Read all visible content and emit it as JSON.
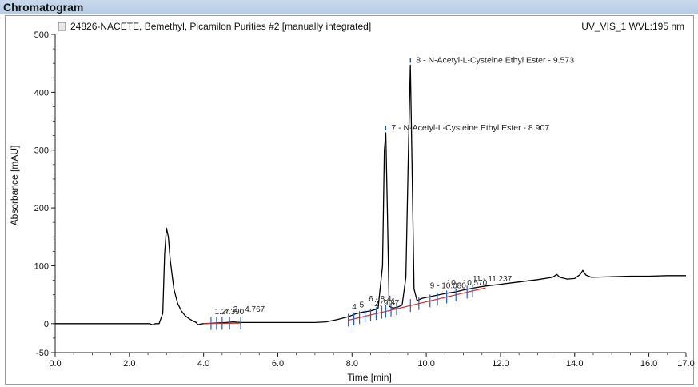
{
  "window": {
    "panel_title": "Chromatogram"
  },
  "chart_data": {
    "type": "line",
    "title": "24826-NACETE, Bemethyl, Picamilon Purities #2 [manually integrated]",
    "channel": "UV_VIS_1 WVL:195 nm",
    "xlabel": "Time [min]",
    "ylabel": "Absorbance [mAU]",
    "xlim": [
      0.0,
      17.0
    ],
    "ylim": [
      -50,
      500
    ],
    "x_ticks": [
      "0.0",
      "2.0",
      "4.0",
      "6.0",
      "8.0",
      "10.0",
      "12.0",
      "14.0",
      "16.0",
      "17.0"
    ],
    "y_ticks": [
      "-50",
      "0",
      "100",
      "200",
      "300",
      "400",
      "500"
    ],
    "colors": {
      "trace": "#000000",
      "baseline": "#e0302a",
      "markers": "#1f5fc8"
    },
    "series": [
      {
        "x": [
          0.0,
          2.55,
          2.62,
          2.7,
          2.8,
          2.9,
          2.95,
          3.0,
          3.05,
          3.1,
          3.2,
          3.3,
          3.4,
          3.5,
          3.6,
          3.7,
          3.8,
          3.85,
          3.9,
          4.0,
          4.3,
          4.6,
          4.8,
          5.0,
          5.5,
          6.0,
          6.5,
          7.0,
          7.3,
          7.6,
          7.9,
          8.1,
          8.3,
          8.5,
          8.7,
          8.82,
          8.87,
          8.91,
          8.95,
          9.0,
          9.1,
          9.2,
          9.35,
          9.45,
          9.52,
          9.57,
          9.61,
          9.67,
          9.75,
          9.9,
          10.2,
          10.5,
          10.8,
          11.0,
          11.3,
          11.6,
          12.0,
          12.5,
          13.0,
          13.4,
          13.52,
          13.6,
          13.8,
          14.0,
          14.15,
          14.22,
          14.3,
          14.45,
          15.0,
          15.5,
          16.0,
          16.5,
          17.0
        ],
        "y": [
          0,
          0,
          -2,
          0,
          0,
          18,
          120,
          165,
          150,
          110,
          60,
          35,
          22,
          14,
          9,
          5,
          2,
          -2,
          -1,
          0,
          1,
          2,
          3,
          2,
          2,
          2,
          2,
          2,
          3,
          7,
          12,
          17,
          20,
          22,
          26,
          100,
          300,
          330,
          200,
          30,
          27,
          28,
          32,
          80,
          300,
          447,
          300,
          60,
          40,
          44,
          48,
          52,
          55,
          58,
          62,
          65,
          68,
          72,
          76,
          80,
          85,
          80,
          77,
          78,
          85,
          92,
          84,
          80,
          81,
          82,
          82,
          83,
          83
        ]
      }
    ],
    "baseline_segments": [
      {
        "x": [
          4.0,
          5.0
        ],
        "y": [
          0,
          1
        ]
      },
      {
        "x": [
          7.9,
          11.6
        ],
        "y": [
          6,
          62
        ]
      }
    ],
    "annotations": [
      {
        "text": "8 - N-Acetyl-L-Cysteine Ethyl Ester - 9.573",
        "x": 9.573,
        "y": 447
      },
      {
        "text": "7 - N-Acetyl-L-Cysteine Ethyl Ester - 8.907",
        "x": 8.907,
        "y": 330
      },
      {
        "text": "1.24",
        "x": 4.3,
        "y": 8
      },
      {
        "text": "4.390",
        "x": 4.55,
        "y": 8
      },
      {
        "text": "2 - 4.767",
        "x": 4.8,
        "y": 12
      },
      {
        "text": "4",
        "x": 8.0,
        "y": 16
      },
      {
        "text": "5",
        "x": 8.2,
        "y": 20
      },
      {
        "text": "6 - 8.4",
        "x": 8.45,
        "y": 30
      },
      {
        "text": "27",
        "x": 8.6,
        "y": 22
      },
      {
        "text": "9.87",
        "x": 8.85,
        "y": 23
      },
      {
        "text": "1",
        "x": 9.05,
        "y": 26
      },
      {
        "text": "9 - 10.080",
        "x": 10.1,
        "y": 53
      },
      {
        "text": "10 - 10.570",
        "x": 10.55,
        "y": 58
      },
      {
        "text": "11 - 11.237",
        "x": 11.25,
        "y": 65
      }
    ],
    "peak_marker_times": [
      4.2,
      4.35,
      4.5,
      4.7,
      5.0,
      7.9,
      8.05,
      8.2,
      8.35,
      8.5,
      8.65,
      8.8,
      8.907,
      9.05,
      9.2,
      9.573,
      9.8,
      10.1,
      10.3,
      10.55,
      10.8,
      11.1,
      11.25
    ]
  }
}
